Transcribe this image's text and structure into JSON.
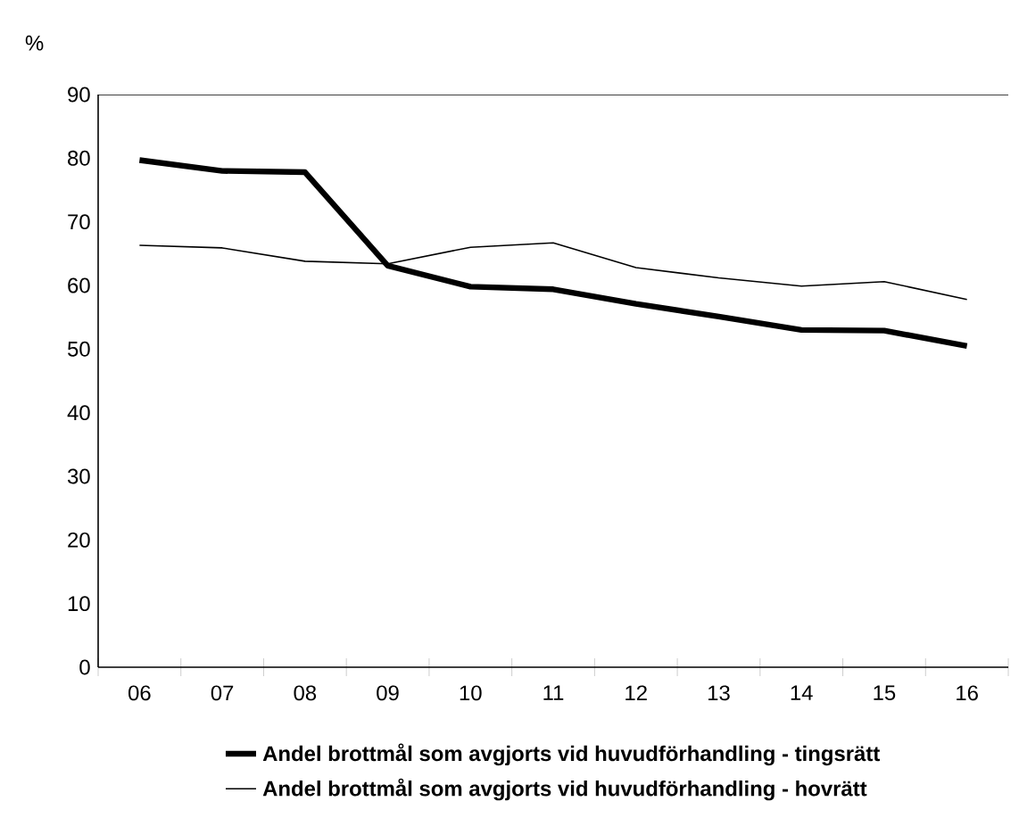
{
  "chart_data": {
    "type": "line",
    "ylabel": "%",
    "categories": [
      "06",
      "07",
      "08",
      "09",
      "10",
      "11",
      "12",
      "13",
      "14",
      "15",
      "16"
    ],
    "series": [
      {
        "name": "Andel brottmål som avgjorts vid huvudförhandling - tingsrätt",
        "color": "#000000",
        "values": [
          79.7,
          78.0,
          77.8,
          63.1,
          59.8,
          59.4,
          57.1,
          55.1,
          53.0,
          52.9,
          50.5
        ]
      },
      {
        "name": "Andel brottmål som avgjorts vid huvudförhandling - hovrätt",
        "color": "#000000",
        "values": [
          66.3,
          65.9,
          63.8,
          63.4,
          66.0,
          66.7,
          62.8,
          61.2,
          59.9,
          60.6,
          57.8
        ]
      }
    ],
    "ylim": [
      0,
      90
    ],
    "yticks": [
      0,
      10,
      20,
      30,
      40,
      50,
      60,
      70,
      80,
      90
    ],
    "grid": false,
    "legend": "bottom",
    "marker": "none",
    "line_style": "solid"
  }
}
